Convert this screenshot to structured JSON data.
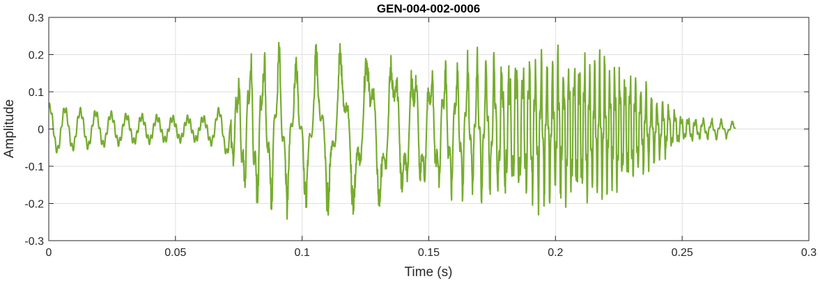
{
  "chart_data": {
    "type": "line",
    "title": "GEN-004-002-0006",
    "xlabel": "Time (s)",
    "ylabel": "Amplitude",
    "xlim": [
      0,
      0.3
    ],
    "ylim": [
      -0.3,
      0.3
    ],
    "grid": true,
    "x_ticks": [
      0,
      0.05,
      0.1,
      0.15,
      0.2,
      0.25,
      0.3
    ],
    "x_tick_labels": [
      "0",
      "0.05",
      "0.1",
      "0.15",
      "0.2",
      "0.25",
      "0.3"
    ],
    "y_ticks": [
      -0.3,
      -0.2,
      -0.1,
      0,
      0.1,
      0.2,
      0.3
    ],
    "y_tick_labels": [
      "-0.3",
      "-0.2",
      "-0.1",
      "0",
      "0.1",
      "0.2",
      "0.3"
    ],
    "series": [
      {
        "color": "#77AC30",
        "x_start": 0,
        "x_end": 0.271,
        "envelope": [
          [
            0.0,
            0.06
          ],
          [
            0.01,
            0.05
          ],
          [
            0.03,
            0.035
          ],
          [
            0.05,
            0.028
          ],
          [
            0.062,
            0.028
          ],
          [
            0.07,
            0.06
          ],
          [
            0.074,
            0.13
          ],
          [
            0.08,
            0.21
          ],
          [
            0.1,
            0.19
          ],
          [
            0.13,
            0.21
          ],
          [
            0.15,
            0.16
          ],
          [
            0.18,
            0.19
          ],
          [
            0.2,
            0.2
          ],
          [
            0.215,
            0.2
          ],
          [
            0.23,
            0.15
          ],
          [
            0.24,
            0.09
          ],
          [
            0.25,
            0.035
          ],
          [
            0.271,
            0.02
          ]
        ]
      }
    ]
  }
}
